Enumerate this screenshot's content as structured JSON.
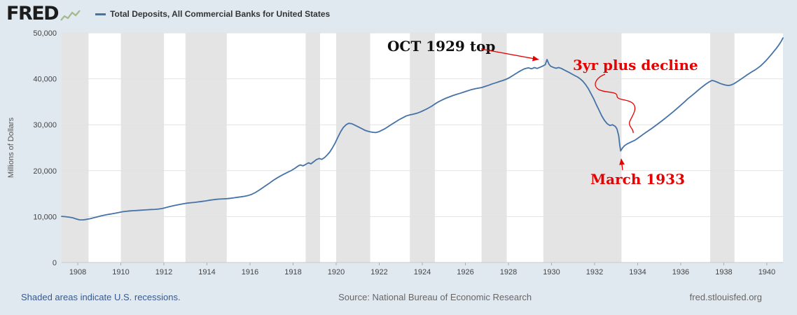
{
  "header": {
    "logo_text": "FRED",
    "legend_label": "Total Deposits, All Commercial Banks for United States"
  },
  "footer": {
    "recession_note": "Shaded areas indicate U.S. recessions.",
    "source": "Source: National Bureau of Economic Research",
    "site": "fred.stlouisfed.org"
  },
  "annotations": {
    "top": "OCT 1929 top",
    "decline": "3yr plus decline",
    "trough": "March 1933"
  },
  "colors": {
    "background": "#e1e9f0",
    "line_blue": "#4572a7",
    "recession_gray": "#e4e4e4",
    "annotation_red": "#e60000",
    "link_blue": "#36588e"
  },
  "chart_data": {
    "type": "line",
    "title": "Total Deposits, All Commercial Banks for United States",
    "xlabel": "",
    "ylabel": "Millions of Dollars",
    "xlim": [
      1907.25,
      1940.75
    ],
    "ylim": [
      0,
      50000
    ],
    "x_ticks": [
      1908,
      1910,
      1912,
      1914,
      1916,
      1918,
      1920,
      1922,
      1924,
      1926,
      1928,
      1930,
      1932,
      1934,
      1936,
      1938,
      1940
    ],
    "y_ticks": [
      0,
      10000,
      20000,
      30000,
      40000,
      50000
    ],
    "grid": true,
    "legend_position": "top-left",
    "line_color": "#4572a7",
    "recession_color": "#e4e4e4",
    "recessions": [
      [
        1907.25,
        1908.5
      ],
      [
        1910.0,
        1912.0
      ],
      [
        1913.0,
        1914.92
      ],
      [
        1918.58,
        1919.25
      ],
      [
        1920.0,
        1921.58
      ],
      [
        1923.42,
        1924.58
      ],
      [
        1926.75,
        1927.92
      ],
      [
        1929.62,
        1933.25
      ],
      [
        1937.37,
        1938.5
      ]
    ],
    "series": [
      {
        "name": "Total Deposits, All Commercial Banks",
        "units": "Millions of Dollars",
        "points": [
          [
            1907.25,
            10050
          ],
          [
            1907.42,
            9980
          ],
          [
            1907.58,
            9900
          ],
          [
            1907.75,
            9750
          ],
          [
            1907.92,
            9500
          ],
          [
            1908.08,
            9300
          ],
          [
            1908.25,
            9280
          ],
          [
            1908.42,
            9400
          ],
          [
            1908.58,
            9550
          ],
          [
            1908.75,
            9750
          ],
          [
            1908.92,
            9950
          ],
          [
            1909.08,
            10150
          ],
          [
            1909.25,
            10320
          ],
          [
            1909.42,
            10470
          ],
          [
            1909.58,
            10600
          ],
          [
            1909.75,
            10750
          ],
          [
            1909.92,
            10900
          ],
          [
            1910.08,
            11050
          ],
          [
            1910.25,
            11150
          ],
          [
            1910.42,
            11230
          ],
          [
            1910.58,
            11280
          ],
          [
            1910.75,
            11320
          ],
          [
            1910.92,
            11380
          ],
          [
            1911.08,
            11440
          ],
          [
            1911.25,
            11500
          ],
          [
            1911.42,
            11540
          ],
          [
            1911.58,
            11570
          ],
          [
            1911.75,
            11640
          ],
          [
            1911.92,
            11760
          ],
          [
            1912.08,
            11950
          ],
          [
            1912.25,
            12150
          ],
          [
            1912.42,
            12350
          ],
          [
            1912.58,
            12500
          ],
          [
            1912.75,
            12650
          ],
          [
            1912.92,
            12800
          ],
          [
            1913.08,
            12920
          ],
          [
            1913.25,
            13020
          ],
          [
            1913.42,
            13100
          ],
          [
            1913.58,
            13180
          ],
          [
            1913.75,
            13290
          ],
          [
            1913.92,
            13400
          ],
          [
            1914.08,
            13530
          ],
          [
            1914.25,
            13650
          ],
          [
            1914.42,
            13750
          ],
          [
            1914.58,
            13810
          ],
          [
            1914.75,
            13850
          ],
          [
            1914.92,
            13900
          ],
          [
            1915.08,
            13980
          ],
          [
            1915.25,
            14080
          ],
          [
            1915.42,
            14200
          ],
          [
            1915.58,
            14300
          ],
          [
            1915.75,
            14420
          ],
          [
            1915.92,
            14600
          ],
          [
            1916.08,
            14850
          ],
          [
            1916.25,
            15250
          ],
          [
            1916.42,
            15750
          ],
          [
            1916.58,
            16250
          ],
          [
            1916.75,
            16800
          ],
          [
            1916.92,
            17350
          ],
          [
            1917.08,
            17900
          ],
          [
            1917.25,
            18400
          ],
          [
            1917.42,
            18850
          ],
          [
            1917.58,
            19250
          ],
          [
            1917.75,
            19650
          ],
          [
            1917.92,
            20050
          ],
          [
            1918.08,
            20500
          ],
          [
            1918.21,
            20950
          ],
          [
            1918.33,
            21250
          ],
          [
            1918.46,
            21050
          ],
          [
            1918.58,
            21350
          ],
          [
            1918.71,
            21700
          ],
          [
            1918.83,
            21500
          ],
          [
            1918.96,
            21950
          ],
          [
            1919.08,
            22400
          ],
          [
            1919.21,
            22650
          ],
          [
            1919.33,
            22450
          ],
          [
            1919.46,
            22850
          ],
          [
            1919.58,
            23400
          ],
          [
            1919.71,
            24100
          ],
          [
            1919.83,
            25000
          ],
          [
            1919.96,
            26100
          ],
          [
            1920.08,
            27300
          ],
          [
            1920.21,
            28500
          ],
          [
            1920.33,
            29400
          ],
          [
            1920.46,
            30000
          ],
          [
            1920.58,
            30300
          ],
          [
            1920.71,
            30250
          ],
          [
            1920.83,
            30000
          ],
          [
            1920.96,
            29700
          ],
          [
            1921.08,
            29400
          ],
          [
            1921.21,
            29100
          ],
          [
            1921.33,
            28800
          ],
          [
            1921.46,
            28600
          ],
          [
            1921.58,
            28450
          ],
          [
            1921.71,
            28350
          ],
          [
            1921.83,
            28300
          ],
          [
            1921.96,
            28450
          ],
          [
            1922.08,
            28700
          ],
          [
            1922.25,
            29100
          ],
          [
            1922.42,
            29600
          ],
          [
            1922.58,
            30100
          ],
          [
            1922.75,
            30600
          ],
          [
            1922.92,
            31100
          ],
          [
            1923.08,
            31500
          ],
          [
            1923.25,
            31900
          ],
          [
            1923.42,
            32150
          ],
          [
            1923.58,
            32300
          ],
          [
            1923.75,
            32500
          ],
          [
            1923.92,
            32800
          ],
          [
            1924.08,
            33150
          ],
          [
            1924.25,
            33550
          ],
          [
            1924.42,
            34000
          ],
          [
            1924.58,
            34500
          ],
          [
            1924.75,
            35000
          ],
          [
            1924.92,
            35400
          ],
          [
            1925.08,
            35750
          ],
          [
            1925.25,
            36050
          ],
          [
            1925.42,
            36350
          ],
          [
            1925.58,
            36600
          ],
          [
            1925.75,
            36850
          ],
          [
            1925.92,
            37100
          ],
          [
            1926.08,
            37350
          ],
          [
            1926.25,
            37600
          ],
          [
            1926.42,
            37800
          ],
          [
            1926.58,
            37950
          ],
          [
            1926.75,
            38100
          ],
          [
            1926.92,
            38350
          ],
          [
            1927.08,
            38600
          ],
          [
            1927.25,
            38900
          ],
          [
            1927.42,
            39150
          ],
          [
            1927.58,
            39400
          ],
          [
            1927.75,
            39650
          ],
          [
            1927.92,
            39950
          ],
          [
            1928.08,
            40350
          ],
          [
            1928.25,
            40850
          ],
          [
            1928.42,
            41350
          ],
          [
            1928.58,
            41800
          ],
          [
            1928.75,
            42200
          ],
          [
            1928.92,
            42400
          ],
          [
            1929.08,
            42200
          ],
          [
            1929.21,
            42450
          ],
          [
            1929.33,
            42250
          ],
          [
            1929.46,
            42500
          ],
          [
            1929.58,
            42750
          ],
          [
            1929.71,
            43100
          ],
          [
            1929.79,
            44200
          ],
          [
            1929.88,
            43200
          ],
          [
            1929.96,
            42750
          ],
          [
            1930.08,
            42500
          ],
          [
            1930.21,
            42300
          ],
          [
            1930.33,
            42450
          ],
          [
            1930.46,
            42250
          ],
          [
            1930.58,
            41950
          ],
          [
            1930.71,
            41650
          ],
          [
            1930.83,
            41350
          ],
          [
            1930.96,
            41000
          ],
          [
            1931.08,
            40700
          ],
          [
            1931.21,
            40400
          ],
          [
            1931.33,
            40000
          ],
          [
            1931.46,
            39450
          ],
          [
            1931.58,
            38750
          ],
          [
            1931.71,
            37850
          ],
          [
            1931.83,
            36800
          ],
          [
            1931.96,
            35650
          ],
          [
            1932.08,
            34400
          ],
          [
            1932.21,
            33150
          ],
          [
            1932.33,
            31950
          ],
          [
            1932.46,
            30950
          ],
          [
            1932.58,
            30250
          ],
          [
            1932.71,
            29850
          ],
          [
            1932.83,
            30000
          ],
          [
            1932.96,
            29650
          ],
          [
            1933.04,
            29100
          ],
          [
            1933.12,
            27600
          ],
          [
            1933.17,
            25600
          ],
          [
            1933.21,
            24300
          ],
          [
            1933.29,
            24900
          ],
          [
            1933.38,
            25400
          ],
          [
            1933.5,
            25800
          ],
          [
            1933.63,
            26100
          ],
          [
            1933.75,
            26350
          ],
          [
            1933.88,
            26650
          ],
          [
            1934.0,
            27050
          ],
          [
            1934.17,
            27600
          ],
          [
            1934.33,
            28150
          ],
          [
            1934.5,
            28700
          ],
          [
            1934.67,
            29250
          ],
          [
            1934.83,
            29800
          ],
          [
            1935.0,
            30400
          ],
          [
            1935.17,
            31000
          ],
          [
            1935.33,
            31600
          ],
          [
            1935.5,
            32250
          ],
          [
            1935.67,
            32900
          ],
          [
            1935.83,
            33550
          ],
          [
            1936.0,
            34250
          ],
          [
            1936.17,
            34950
          ],
          [
            1936.33,
            35650
          ],
          [
            1936.5,
            36300
          ],
          [
            1936.67,
            36950
          ],
          [
            1936.83,
            37600
          ],
          [
            1937.0,
            38250
          ],
          [
            1937.17,
            38850
          ],
          [
            1937.33,
            39350
          ],
          [
            1937.46,
            39650
          ],
          [
            1937.58,
            39500
          ],
          [
            1937.71,
            39250
          ],
          [
            1937.83,
            39000
          ],
          [
            1937.96,
            38800
          ],
          [
            1938.08,
            38650
          ],
          [
            1938.21,
            38550
          ],
          [
            1938.33,
            38650
          ],
          [
            1938.46,
            38900
          ],
          [
            1938.58,
            39250
          ],
          [
            1938.71,
            39650
          ],
          [
            1938.83,
            40050
          ],
          [
            1938.96,
            40450
          ],
          [
            1939.08,
            40850
          ],
          [
            1939.21,
            41250
          ],
          [
            1939.33,
            41600
          ],
          [
            1939.46,
            41950
          ],
          [
            1939.58,
            42350
          ],
          [
            1939.71,
            42800
          ],
          [
            1939.83,
            43350
          ],
          [
            1939.96,
            43950
          ],
          [
            1940.08,
            44600
          ],
          [
            1940.21,
            45300
          ],
          [
            1940.33,
            46000
          ],
          [
            1940.46,
            46750
          ],
          [
            1940.58,
            47550
          ],
          [
            1940.67,
            48200
          ],
          [
            1940.75,
            48900
          ]
        ]
      }
    ]
  }
}
